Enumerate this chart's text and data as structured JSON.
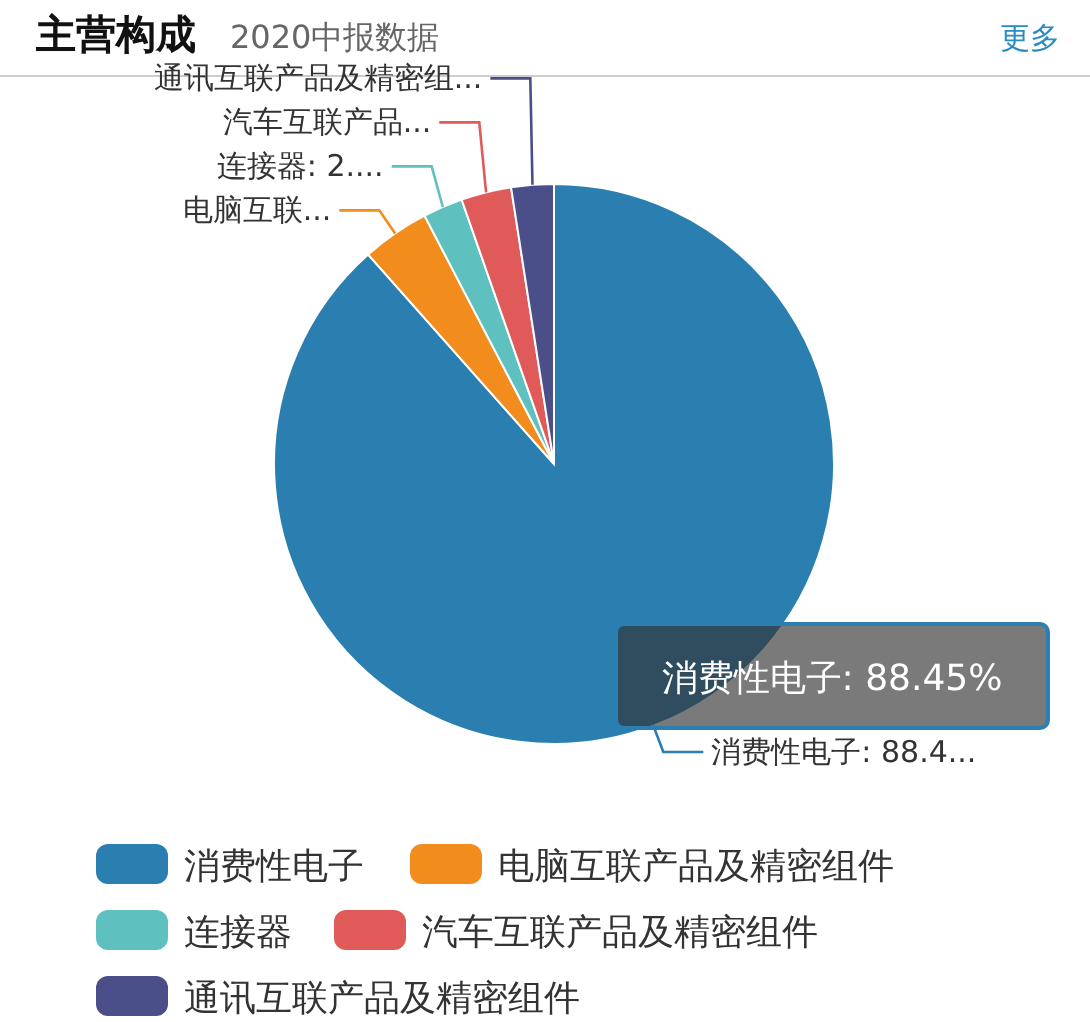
{
  "chart_data": {
    "type": "pie",
    "title": "主营构成",
    "subtitle": "2020中报数据",
    "categories": [
      "消费性电子",
      "电脑互联产品及精密组件",
      "连接器",
      "汽车互联产品及精密组件",
      "通讯互联产品及精密组件"
    ],
    "values": [
      88.45,
      3.9,
      2.3,
      2.9,
      2.45
    ],
    "colors": [
      "#2a7fb0",
      "#f28c1c",
      "#5fc0c0",
      "#e05a5a",
      "#4a4f8a"
    ],
    "value_labels": [
      "消费性电子: 88.4...",
      "电脑互联...",
      "连接器: 2....",
      "汽车互联产品...",
      "通讯互联产品及精密组..."
    ],
    "annotations": [
      "消费性电子: 88.45%",
      "更多"
    ],
    "legend": "bottom"
  }
}
